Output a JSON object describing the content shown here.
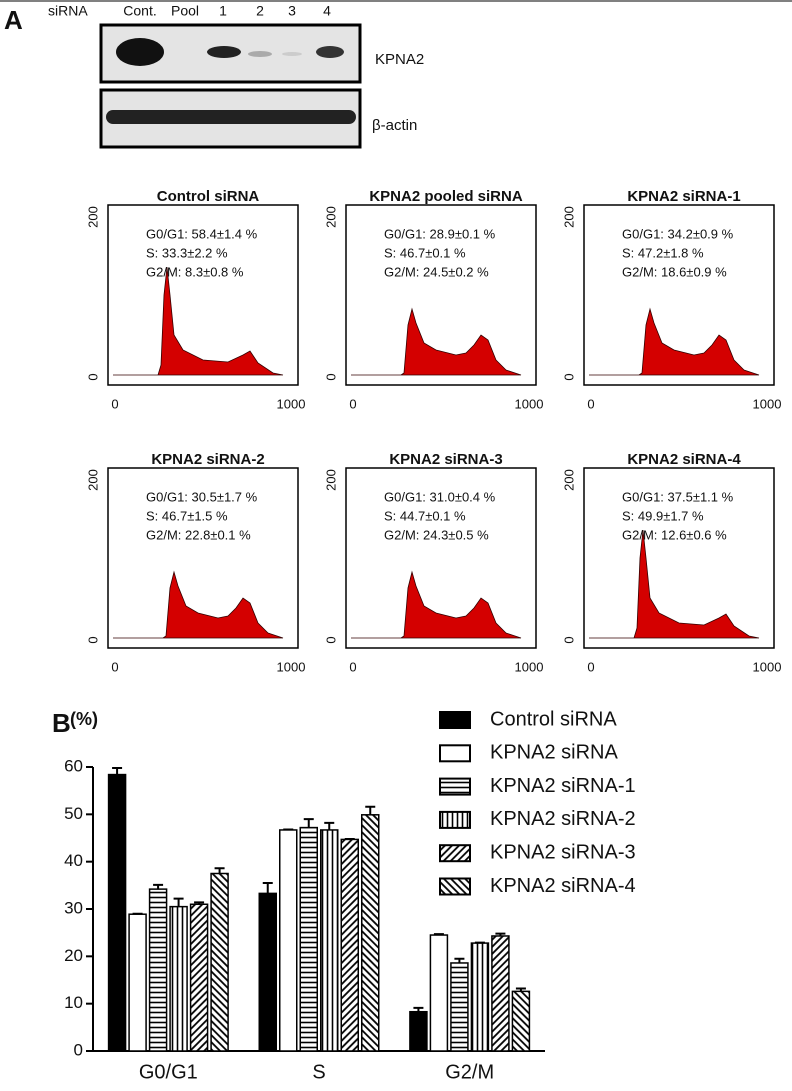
{
  "panel_a": {
    "label": "A",
    "sirna_label": "siRNA",
    "lanes": [
      "Cont.",
      "Pool",
      "1",
      "2",
      "3",
      "4"
    ],
    "blots": [
      "KPNA2",
      "β-actin"
    ],
    "histogram_axes": {
      "y_ticks": [
        0,
        200
      ],
      "x_ticks": [
        0,
        1000
      ]
    },
    "histograms": [
      {
        "title": "Control siRNA",
        "stats": [
          "G0/G1: 58.4±1.4 %",
          "S: 33.3±2.2 %",
          "G2/M: 8.3±0.8 %"
        ]
      },
      {
        "title": "KPNA2 pooled siRNA",
        "stats": [
          "G0/G1: 28.9±0.1 %",
          "S: 46.7±0.1 %",
          "G2/M: 24.5±0.2 %"
        ]
      },
      {
        "title": "KPNA2 siRNA-1",
        "stats": [
          "G0/G1: 34.2±0.9 %",
          "S: 47.2±1.8 %",
          "G2/M: 18.6±0.9 %"
        ]
      },
      {
        "title": "KPNA2 siRNA-2",
        "stats": [
          "G0/G1: 30.5±1.7 %",
          "S: 46.7±1.5 %",
          "G2/M: 22.8±0.1 %"
        ]
      },
      {
        "title": "KPNA2 siRNA-3",
        "stats": [
          "G0/G1: 31.0±0.4 %",
          "S: 44.7±0.1 %",
          "G2/M: 24.3±0.5 %"
        ]
      },
      {
        "title": "KPNA2 siRNA-4",
        "stats": [
          "G0/G1: 37.5±1.1 %",
          "S: 49.9±1.7 %",
          "G2/M: 12.6±0.6 %"
        ]
      }
    ]
  },
  "chart_data": {
    "type": "bar",
    "panel_label": "B",
    "y_label": "(%)",
    "categories": [
      "G0/G1",
      "S",
      "G2/M"
    ],
    "ylim": [
      0,
      60
    ],
    "yticks": [
      0,
      10,
      20,
      30,
      40,
      50,
      60
    ],
    "series": [
      {
        "name": "Control siRNA",
        "color": "#000000",
        "pattern": "solid",
        "values": [
          58.4,
          33.3,
          8.3
        ],
        "errors": [
          1.4,
          2.2,
          0.8
        ]
      },
      {
        "name": "KPNA2 siRNA",
        "color": "#000000",
        "pattern": "open",
        "values": [
          28.9,
          46.7,
          24.5
        ],
        "errors": [
          0.1,
          0.1,
          0.2
        ]
      },
      {
        "name": "KPNA2 siRNA-1",
        "color": "#000000",
        "pattern": "horizontal",
        "values": [
          34.2,
          47.2,
          18.6
        ],
        "errors": [
          0.9,
          1.8,
          0.9
        ]
      },
      {
        "name": "KPNA2 siRNA-2",
        "color": "#000000",
        "pattern": "vertical",
        "values": [
          30.5,
          46.7,
          22.8
        ],
        "errors": [
          1.7,
          1.5,
          0.1
        ]
      },
      {
        "name": "KPNA2 siRNA-3",
        "color": "#000000",
        "pattern": "diagonal",
        "values": [
          31.0,
          44.7,
          24.3
        ],
        "errors": [
          0.4,
          0.1,
          0.5
        ]
      },
      {
        "name": "KPNA2 siRNA-4",
        "color": "#000000",
        "pattern": "backdiagonal",
        "values": [
          37.5,
          49.9,
          12.6
        ],
        "errors": [
          1.1,
          1.7,
          0.6
        ]
      }
    ]
  }
}
